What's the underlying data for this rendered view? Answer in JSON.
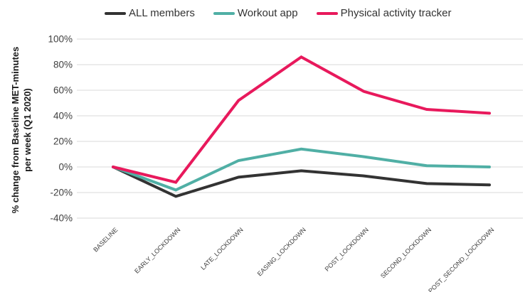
{
  "chart_data": {
    "type": "line",
    "title": "",
    "ylabel": "% change from Baseline MET-minutes per week (Q1 2020)",
    "xlabel": "",
    "categories": [
      "BASELINE",
      "EARLY_LOCKDOWN",
      "LATE_LOCKDOWN",
      "EASING_LOCKDOWN",
      "POST_LOCKDOWN",
      "SECOND_LOCKDOWN",
      "POST_SECOND_LOCKDOWN"
    ],
    "series": [
      {
        "name": "ALL members",
        "color": "#333333",
        "values": [
          0,
          -23,
          -8,
          -3,
          -7,
          -13,
          -14
        ]
      },
      {
        "name": "Workout app",
        "color": "#50AFA5",
        "values": [
          0,
          -18,
          5,
          14,
          8,
          1,
          0
        ]
      },
      {
        "name": "Physical activity tracker",
        "color": "#E8195C",
        "values": [
          0,
          -12,
          52,
          86,
          59,
          45,
          42
        ]
      }
    ],
    "y_ticks": [
      {
        "value": 100,
        "label": "100%"
      },
      {
        "value": 80,
        "label": "80%"
      },
      {
        "value": 60,
        "label": "60%"
      },
      {
        "value": 40,
        "label": "40%"
      },
      {
        "value": 20,
        "label": "20%"
      },
      {
        "value": 0,
        "label": "0%"
      },
      {
        "value": -20,
        "label": "-20%"
      },
      {
        "value": -40,
        "label": "-40%"
      }
    ],
    "ylim": [
      -40,
      100
    ],
    "grid": "horizontal",
    "gridline_color": "#D9D9D9",
    "tick_color": "#404040",
    "legend_position": "top"
  }
}
